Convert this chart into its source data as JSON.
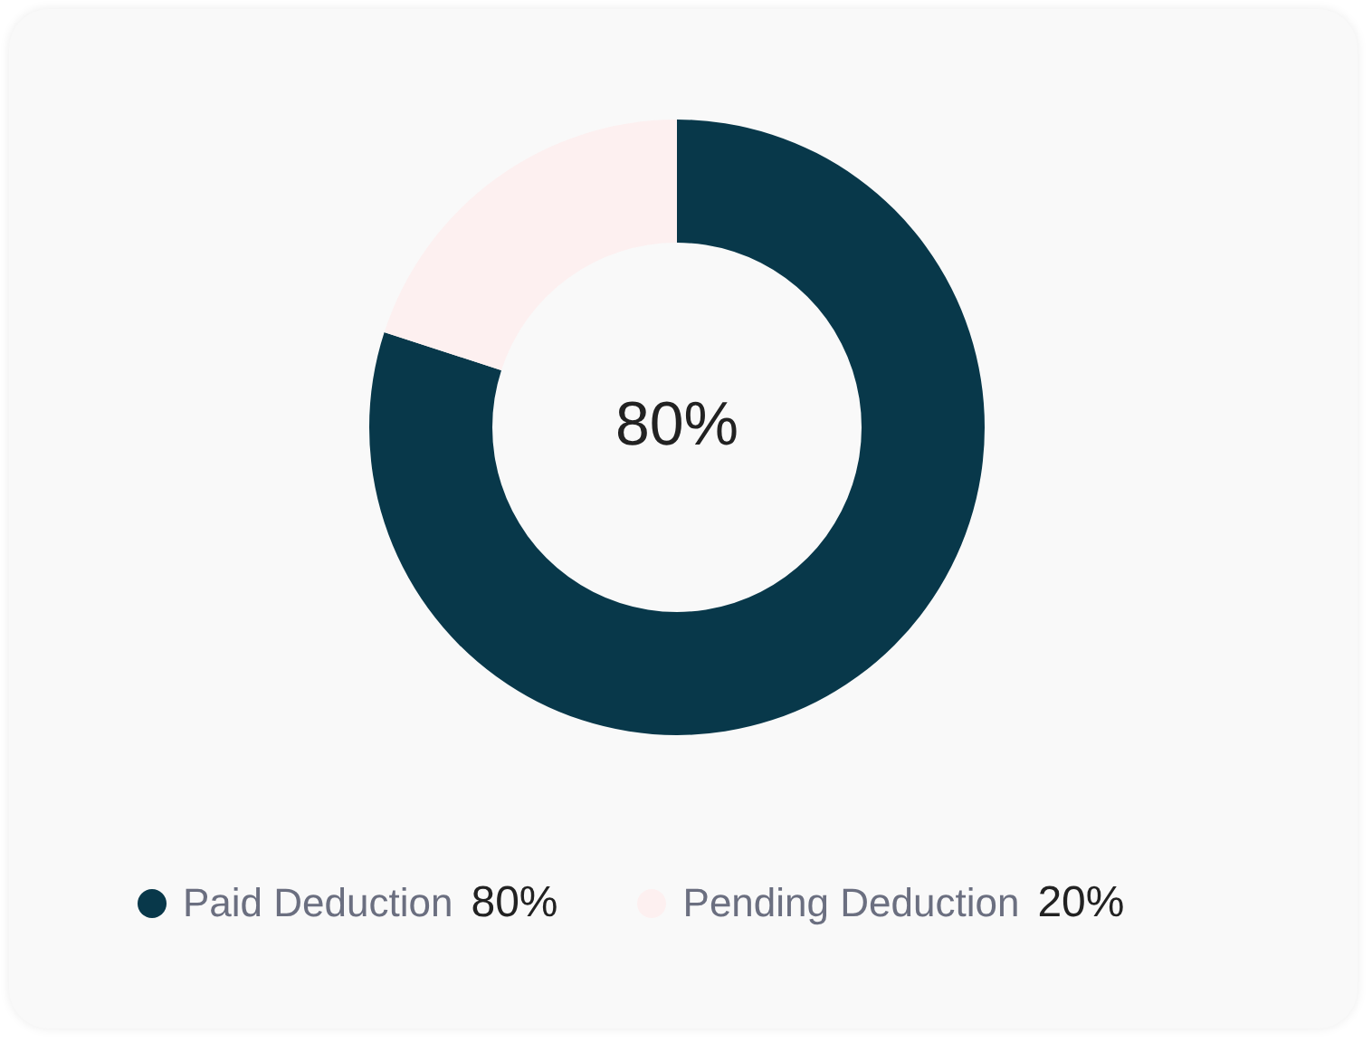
{
  "chart_data": {
    "type": "donut",
    "categories": [
      "Paid Deduction",
      "Pending Deduction"
    ],
    "values": [
      80,
      20
    ],
    "colors": [
      "#08384a",
      "#fdf0f0"
    ],
    "annotations": [
      "80%"
    ],
    "legend": "bottom",
    "value_labels": [
      "80%",
      "20%"
    ]
  }
}
